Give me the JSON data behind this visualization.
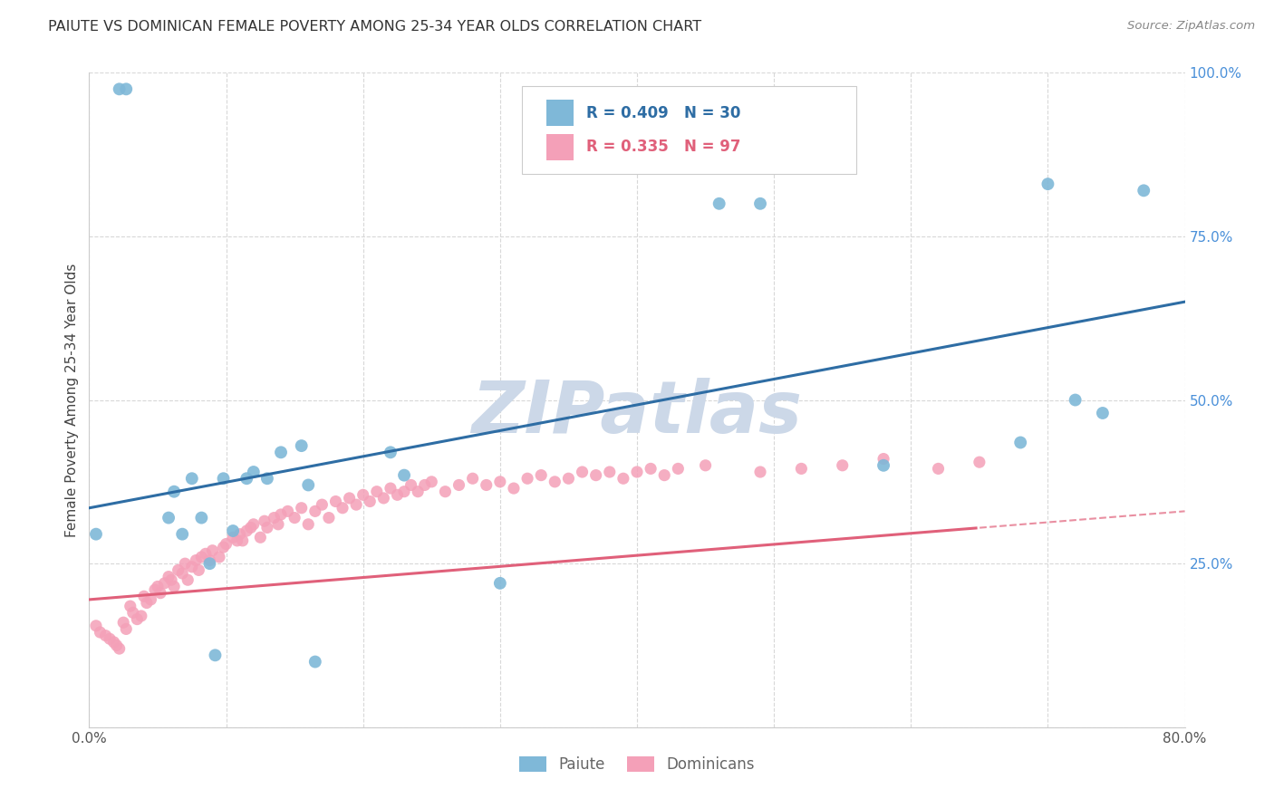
{
  "title": "PAIUTE VS DOMINICAN FEMALE POVERTY AMONG 25-34 YEAR OLDS CORRELATION CHART",
  "source": "Source: ZipAtlas.com",
  "ylabel": "Female Poverty Among 25-34 Year Olds",
  "xlim": [
    0.0,
    0.8
  ],
  "ylim": [
    0.0,
    1.0
  ],
  "paiute_R": 0.409,
  "paiute_N": 30,
  "dominicans_R": 0.335,
  "dominicans_N": 97,
  "paiute_color": "#7fb8d8",
  "dominicans_color": "#f4a0b8",
  "paiute_line_color": "#2e6da4",
  "dominicans_line_color": "#e0607a",
  "watermark": "ZIPatlas",
  "watermark_color": "#ccd8e8",
  "background_color": "#ffffff",
  "grid_color": "#d8d8d8",
  "paiute_x": [
    0.005,
    0.022,
    0.027,
    0.058,
    0.062,
    0.068,
    0.075,
    0.082,
    0.088,
    0.092,
    0.098,
    0.105,
    0.115,
    0.12,
    0.13,
    0.14,
    0.155,
    0.16,
    0.165,
    0.22,
    0.23,
    0.3,
    0.46,
    0.49,
    0.58,
    0.68,
    0.7,
    0.72,
    0.74,
    0.77
  ],
  "paiute_y": [
    0.295,
    0.975,
    0.975,
    0.32,
    0.36,
    0.295,
    0.38,
    0.32,
    0.25,
    0.11,
    0.38,
    0.3,
    0.38,
    0.39,
    0.38,
    0.42,
    0.43,
    0.37,
    0.1,
    0.42,
    0.385,
    0.22,
    0.8,
    0.8,
    0.4,
    0.435,
    0.83,
    0.5,
    0.48,
    0.82
  ],
  "dom_x": [
    0.005,
    0.008,
    0.012,
    0.015,
    0.018,
    0.02,
    0.022,
    0.025,
    0.027,
    0.03,
    0.032,
    0.035,
    0.038,
    0.04,
    0.042,
    0.045,
    0.048,
    0.05,
    0.052,
    0.055,
    0.058,
    0.06,
    0.062,
    0.065,
    0.068,
    0.07,
    0.072,
    0.075,
    0.078,
    0.08,
    0.082,
    0.085,
    0.088,
    0.09,
    0.095,
    0.098,
    0.1,
    0.105,
    0.108,
    0.11,
    0.112,
    0.115,
    0.118,
    0.12,
    0.125,
    0.128,
    0.13,
    0.135,
    0.138,
    0.14,
    0.145,
    0.15,
    0.155,
    0.16,
    0.165,
    0.17,
    0.175,
    0.18,
    0.185,
    0.19,
    0.195,
    0.2,
    0.205,
    0.21,
    0.215,
    0.22,
    0.225,
    0.23,
    0.235,
    0.24,
    0.245,
    0.25,
    0.26,
    0.27,
    0.28,
    0.29,
    0.3,
    0.31,
    0.32,
    0.33,
    0.34,
    0.35,
    0.36,
    0.37,
    0.38,
    0.39,
    0.4,
    0.41,
    0.42,
    0.43,
    0.45,
    0.49,
    0.52,
    0.55,
    0.58,
    0.62,
    0.65
  ],
  "dom_y": [
    0.155,
    0.145,
    0.14,
    0.135,
    0.13,
    0.125,
    0.12,
    0.16,
    0.15,
    0.185,
    0.175,
    0.165,
    0.17,
    0.2,
    0.19,
    0.195,
    0.21,
    0.215,
    0.205,
    0.22,
    0.23,
    0.225,
    0.215,
    0.24,
    0.235,
    0.25,
    0.225,
    0.245,
    0.255,
    0.24,
    0.26,
    0.265,
    0.255,
    0.27,
    0.26,
    0.275,
    0.28,
    0.29,
    0.285,
    0.295,
    0.285,
    0.3,
    0.305,
    0.31,
    0.29,
    0.315,
    0.305,
    0.32,
    0.31,
    0.325,
    0.33,
    0.32,
    0.335,
    0.31,
    0.33,
    0.34,
    0.32,
    0.345,
    0.335,
    0.35,
    0.34,
    0.355,
    0.345,
    0.36,
    0.35,
    0.365,
    0.355,
    0.36,
    0.37,
    0.36,
    0.37,
    0.375,
    0.36,
    0.37,
    0.38,
    0.37,
    0.375,
    0.365,
    0.38,
    0.385,
    0.375,
    0.38,
    0.39,
    0.385,
    0.39,
    0.38,
    0.39,
    0.395,
    0.385,
    0.395,
    0.4,
    0.39,
    0.395,
    0.4,
    0.41,
    0.395,
    0.405
  ],
  "legend_R1": "R = 0.409",
  "legend_N1": "N = 30",
  "legend_R2": "R = 0.335",
  "legend_N2": "N = 97",
  "paiute_label": "Paiute",
  "dominicans_label": "Dominicans"
}
